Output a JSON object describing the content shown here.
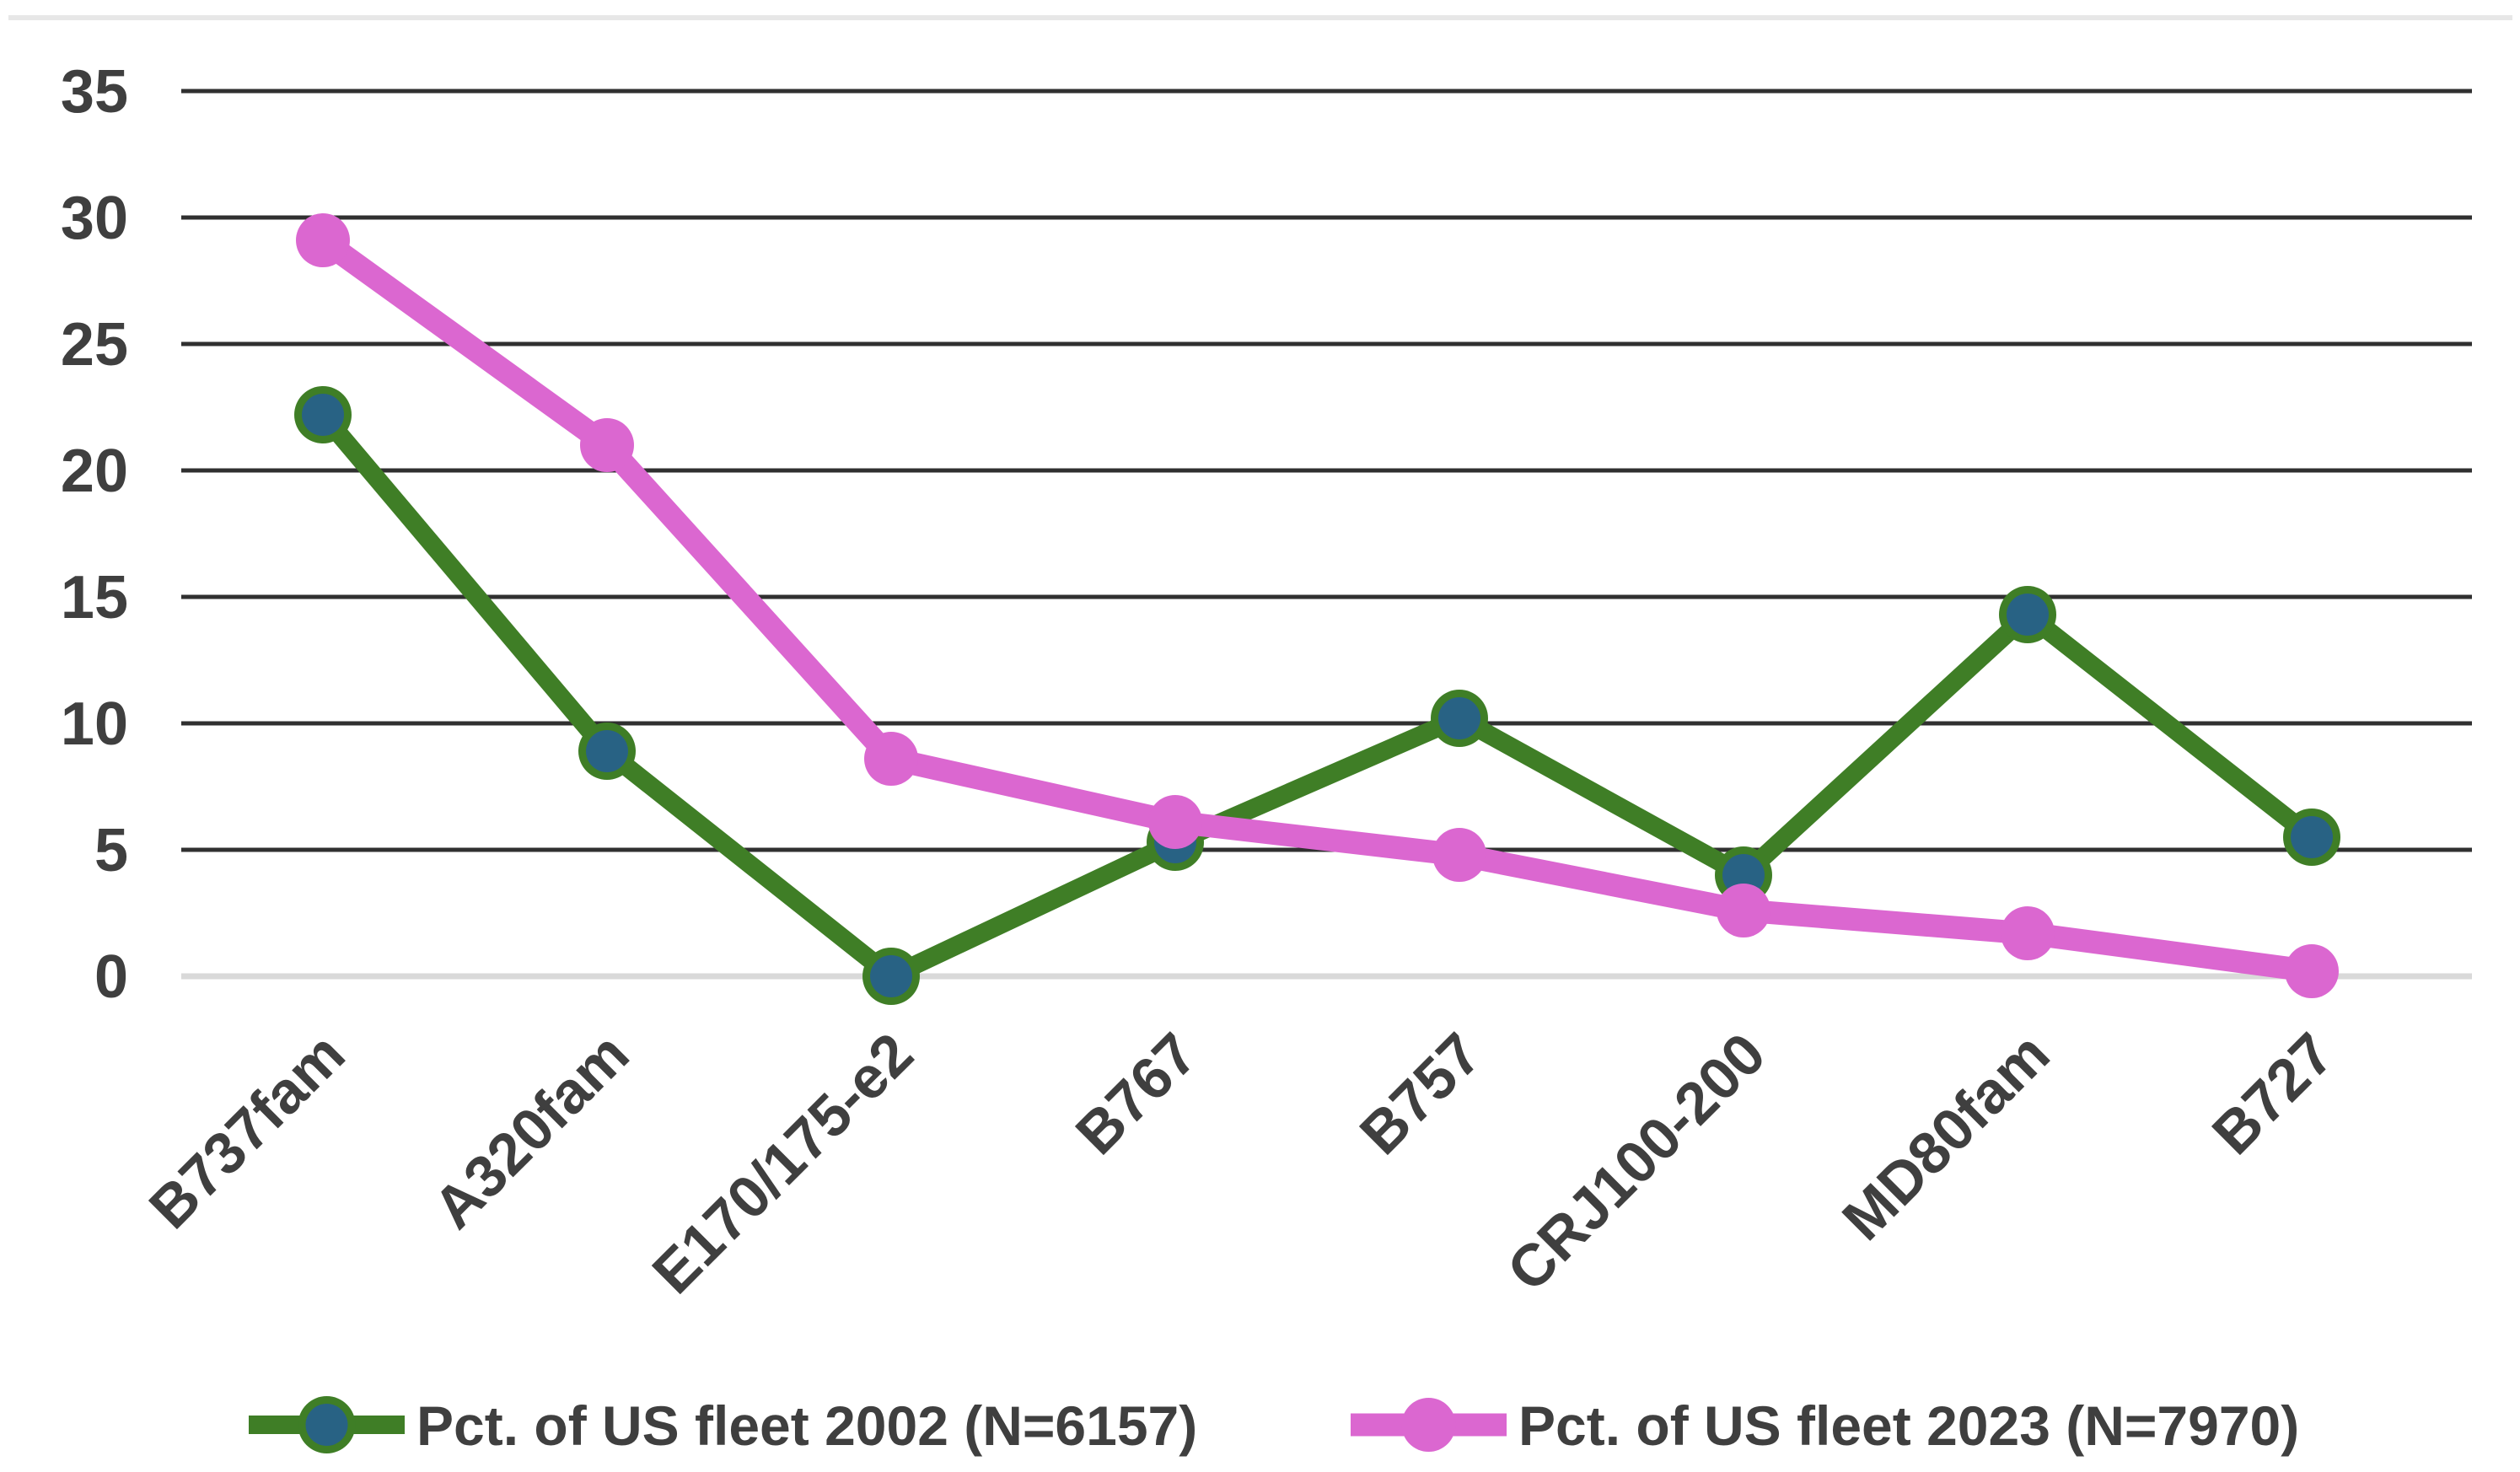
{
  "chart_data": {
    "type": "line",
    "title": "",
    "xlabel": "",
    "ylabel": "",
    "categories": [
      "B737fam",
      "A320fam",
      "E170/175-e2",
      "B767",
      "B757",
      "CRJ100-200",
      "MD80fam",
      "B727"
    ],
    "series": [
      {
        "name": "Pct. of US fleet 2002 (N=6157)",
        "values": [
          22.2,
          8.9,
          0.0,
          5.3,
          10.2,
          4.0,
          14.3,
          5.5
        ],
        "line_color": "#3F7E26",
        "marker_fill": "#286284",
        "marker_ring_color": "#3F7E26",
        "marker_shape": "circle-with-ring"
      },
      {
        "name": "Pct. of US fleet 2023 (N=7970)",
        "values": [
          29.1,
          21.0,
          8.6,
          6.1,
          4.8,
          2.6,
          1.7,
          0.2
        ],
        "line_color": "#DB67D0",
        "marker_fill": "#DB67D0",
        "marker_ring_color": "#DB67D0",
        "marker_shape": "circle"
      }
    ],
    "ylim": [
      0,
      35
    ],
    "ytick_step": 5,
    "yticks": [
      "0",
      "5",
      "10",
      "15",
      "20",
      "25",
      "30",
      "35"
    ],
    "grid": "horizontal",
    "gridline_color": "#303030",
    "zero_axis_line_color": "#D9D9D9",
    "top_border_color": "#E7E7E7",
    "tick_label_color": "#3F3F3F",
    "x_label_color": "#3F3F3F",
    "legend_position": "bottom",
    "legend_text_color": "#3F3F3F",
    "x_labels_rotation_degrees": -45
  }
}
